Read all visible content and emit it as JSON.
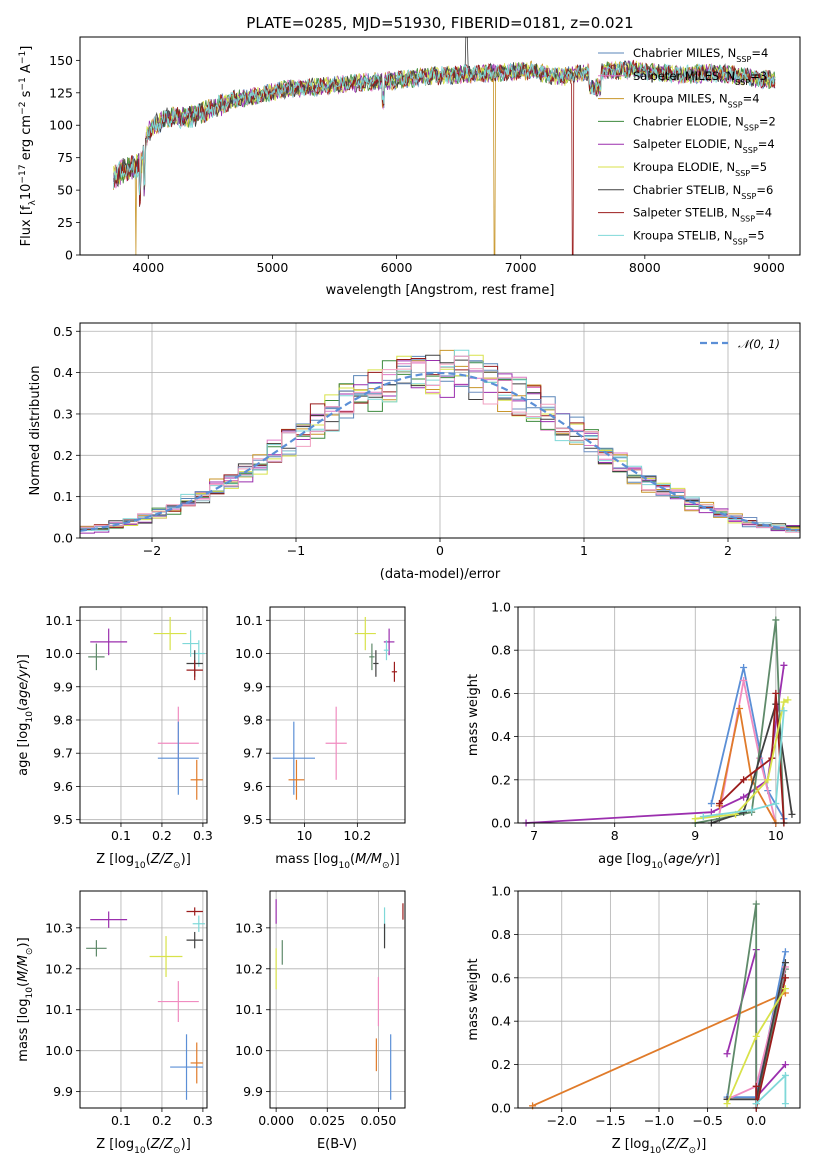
{
  "chart_data": [
    {
      "id": "spectrum",
      "type": "line",
      "title": "PLATE=0285, MJD=51930, FIBERID=0181, z=0.021",
      "xlabel": "wavelength [Angstrom, rest frame]",
      "ylabel": "Flux [fλ10⁻¹⁷ erg cm⁻² s⁻¹ A⁻¹]",
      "xlim": [
        3450,
        9250
      ],
      "ylim": [
        0,
        168
      ],
      "xticks": [
        4000,
        5000,
        6000,
        7000,
        8000,
        9000
      ],
      "yticks": [
        0,
        25,
        50,
        75,
        100,
        125,
        150
      ],
      "continuum": {
        "x": [
          3720,
          3800,
          3900,
          3950,
          4000,
          4100,
          4200,
          4300,
          4500,
          4700,
          4900,
          5100,
          5300,
          5500,
          5700,
          5900,
          6100,
          6300,
          6500,
          6700,
          6900,
          7100,
          7300,
          7500,
          7700,
          7900,
          8100,
          8300,
          8500,
          8700,
          8900,
          9050
        ],
        "y": [
          60,
          65,
          68,
          72,
          95,
          103,
          107,
          105,
          112,
          120,
          123,
          128,
          129,
          131,
          133,
          134,
          136,
          138,
          139,
          140,
          141,
          142,
          137,
          140,
          142,
          143,
          141,
          139,
          140,
          139,
          136,
          135
        ]
      },
      "features": [
        {
          "label": "Na D",
          "x": 5893,
          "depth": 12
        },
        {
          "label": "H-alpha",
          "x": 6563,
          "peak": 168
        },
        {
          "label": "sky",
          "x": 3900,
          "drop_to": 0
        },
        {
          "label": "sky",
          "x": 6790,
          "drop_to": 0
        },
        {
          "label": "sky",
          "x": 7420,
          "drop_to": 0
        }
      ],
      "series": [
        {
          "name": "Chabrier MILES, N",
          "sub": "SSP",
          "nssp": "=4",
          "color": "#5a86b8"
        },
        {
          "name": "Salpeter MILES, N",
          "sub": "SSP",
          "nssp": "=3",
          "color": "#e07ac6"
        },
        {
          "name": "Kroupa MILES, N",
          "sub": "SSP",
          "nssp": "=4",
          "color": "#c8962a"
        },
        {
          "name": "Chabrier ELODIE, N",
          "sub": "SSP",
          "nssp": "=2",
          "color": "#3d8a3d"
        },
        {
          "name": "Salpeter ELODIE, N",
          "sub": "SSP",
          "nssp": "=4",
          "color": "#9b2fae"
        },
        {
          "name": "Kroupa ELODIE, N",
          "sub": "SSP",
          "nssp": "=5",
          "color": "#d8e24a"
        },
        {
          "name": "Chabrier STELIB, N",
          "sub": "SSP",
          "nssp": "=6",
          "color": "#404040"
        },
        {
          "name": "Salpeter STELIB, N",
          "sub": "SSP",
          "nssp": "=4",
          "color": "#9b1c1c"
        },
        {
          "name": "Kroupa STELIB, N",
          "sub": "SSP",
          "nssp": "=5",
          "color": "#7fd8d8"
        }
      ],
      "legend": "top-right",
      "grid": false
    },
    {
      "id": "residuals",
      "type": "line",
      "xlabel": "(data-model)/error",
      "ylabel": "Normed distribution",
      "xlim": [
        -2.5,
        2.5
      ],
      "ylim": [
        0,
        0.52
      ],
      "xticks": [
        -2,
        -1,
        0,
        1,
        2
      ],
      "yticks": [
        0.0,
        0.1,
        0.2,
        0.3,
        0.4,
        0.5
      ],
      "grid": true,
      "bin_width": 0.1,
      "series_colors": [
        "#5a86b8",
        "#e07ac6",
        "#c8962a",
        "#3d8a3d",
        "#9b2fae",
        "#d8e24a",
        "#404040",
        "#9b1c1c",
        "#7fd8d8",
        "#6f8fc0",
        "#f0a0c0"
      ],
      "gaussian": {
        "label": "𝒩(0, 1)",
        "color": "#5b8fd6"
      },
      "legend": "top-right"
    },
    {
      "id": "age_vs_Z",
      "type": "scatter",
      "xlabel": "Z [log₁₀(Z/Z⊙)]",
      "ylabel": "age  [log₁₀(age/yr)]",
      "xlim": [
        0.0,
        0.31
      ],
      "ylim": [
        9.49,
        10.14
      ],
      "xticks": [
        0.1,
        0.2,
        0.3
      ],
      "yticks": [
        9.5,
        9.6,
        9.7,
        9.8,
        9.9,
        10.0,
        10.1
      ],
      "grid": true,
      "points": [
        {
          "x": 0.07,
          "y": 10.035,
          "xerr": 0.045,
          "yerr": 0.04,
          "color": "#9b2fae"
        },
        {
          "x": 0.22,
          "y": 10.06,
          "xerr": 0.04,
          "yerr": 0.05,
          "color": "#d8e24a"
        },
        {
          "x": 0.27,
          "y": 10.03,
          "xerr": 0.02,
          "yerr": 0.04,
          "color": "#7fd8d8"
        },
        {
          "x": 0.04,
          "y": 9.99,
          "xerr": 0.02,
          "yerr": 0.04,
          "color": "#5f8a6a"
        },
        {
          "x": 0.29,
          "y": 10.0,
          "xerr": 0.015,
          "yerr": 0.04,
          "color": "#7fd8d8"
        },
        {
          "x": 0.28,
          "y": 9.97,
          "xerr": 0.02,
          "yerr": 0.04,
          "color": "#404040"
        },
        {
          "x": 0.28,
          "y": 9.95,
          "xerr": 0.02,
          "yerr": 0.03,
          "color": "#9b1c1c"
        },
        {
          "x": 0.24,
          "y": 9.73,
          "xerr": 0.05,
          "yerr": 0.11,
          "color": "#f08cc0"
        },
        {
          "x": 0.24,
          "y": 9.685,
          "xerr": 0.05,
          "yerr": 0.11,
          "color": "#5b8fd6"
        },
        {
          "x": 0.285,
          "y": 9.62,
          "xerr": 0.015,
          "yerr": 0.06,
          "color": "#e07b2a"
        }
      ]
    },
    {
      "id": "age_vs_mass",
      "type": "scatter",
      "xlabel": "mass [log₁₀(M/M⊙)]",
      "xlim": [
        9.87,
        10.38
      ],
      "ylim": [
        9.49,
        10.14
      ],
      "xticks": [
        10.0,
        10.2
      ],
      "yticks": [
        9.5,
        9.6,
        9.7,
        9.8,
        9.9,
        10.0,
        10.1
      ],
      "grid": true,
      "points": [
        {
          "x": 10.23,
          "y": 10.06,
          "xerr": 0.04,
          "yerr": 0.05,
          "color": "#d8e24a"
        },
        {
          "x": 10.32,
          "y": 10.035,
          "xerr": 0.02,
          "yerr": 0.04,
          "color": "#9b2fae"
        },
        {
          "x": 10.31,
          "y": 10.01,
          "xerr": 0.01,
          "yerr": 0.03,
          "color": "#7fd8d8"
        },
        {
          "x": 10.255,
          "y": 9.99,
          "xerr": 0.01,
          "yerr": 0.04,
          "color": "#5f8a6a"
        },
        {
          "x": 10.27,
          "y": 9.97,
          "xerr": 0.01,
          "yerr": 0.04,
          "color": "#404040"
        },
        {
          "x": 10.34,
          "y": 9.945,
          "xerr": 0.01,
          "yerr": 0.03,
          "color": "#9b1c1c"
        },
        {
          "x": 10.12,
          "y": 9.73,
          "xerr": 0.04,
          "yerr": 0.11,
          "color": "#f08cc0"
        },
        {
          "x": 9.96,
          "y": 9.685,
          "xerr": 0.08,
          "yerr": 0.11,
          "color": "#5b8fd6"
        },
        {
          "x": 9.97,
          "y": 9.62,
          "xerr": 0.03,
          "yerr": 0.06,
          "color": "#e07b2a"
        }
      ]
    },
    {
      "id": "weight_vs_age",
      "type": "line",
      "xlabel": "age  [log₁₀(age/yr)]",
      "ylabel": "mass weight",
      "xlim": [
        6.8,
        10.3
      ],
      "ylim": [
        0.0,
        1.0
      ],
      "xticks": [
        7,
        8,
        9,
        10
      ],
      "yticks": [
        0.0,
        0.2,
        0.4,
        0.6,
        0.8,
        1.0
      ],
      "grid": true,
      "series": [
        {
          "color": "#9b2fae",
          "x": [
            6.9,
            9.2,
            9.6,
            9.9,
            10.1
          ],
          "y": [
            0.0,
            0.05,
            0.12,
            0.2,
            0.73
          ]
        },
        {
          "color": "#5b8fd6",
          "x": [
            9.2,
            9.6,
            9.9,
            10.1
          ],
          "y": [
            0.09,
            0.72,
            0.15,
            0.02
          ]
        },
        {
          "color": "#f08cc0",
          "x": [
            9.3,
            9.6,
            9.8,
            10.0
          ],
          "y": [
            0.04,
            0.66,
            0.3,
            0.0
          ]
        },
        {
          "color": "#e07b2a",
          "x": [
            9.3,
            9.55,
            9.7,
            10.0
          ],
          "y": [
            0.08,
            0.53,
            0.2,
            0.0
          ]
        },
        {
          "color": "#5f8a6a",
          "x": [
            9.0,
            9.3,
            9.7,
            10.0,
            10.1
          ],
          "y": [
            0.0,
            0.02,
            0.05,
            0.94,
            0.0
          ]
        },
        {
          "color": "#404040",
          "x": [
            9.2,
            9.6,
            10.0,
            10.2
          ],
          "y": [
            0.0,
            0.05,
            0.55,
            0.04
          ]
        },
        {
          "color": "#9b1c1c",
          "x": [
            9.3,
            9.6,
            9.95,
            10.0,
            10.1
          ],
          "y": [
            0.09,
            0.2,
            0.3,
            0.6,
            0.0
          ]
        },
        {
          "color": "#d8e24a",
          "x": [
            9.0,
            9.5,
            9.9,
            10.1,
            10.15
          ],
          "y": [
            0.02,
            0.04,
            0.2,
            0.56,
            0.57
          ]
        },
        {
          "color": "#7fd8d8",
          "x": [
            9.1,
            9.7,
            10.0,
            10.1
          ],
          "y": [
            0.03,
            0.06,
            0.09,
            0.52
          ]
        }
      ]
    },
    {
      "id": "mass_vs_Z",
      "type": "scatter",
      "xlabel": "Z [log₁₀(Z/Z⊙)]",
      "ylabel": "mass [log₁₀(M/M⊙)]",
      "xlim": [
        0.0,
        0.31
      ],
      "ylim": [
        9.86,
        10.39
      ],
      "xticks": [
        0.1,
        0.2,
        0.3
      ],
      "yticks": [
        9.9,
        10.0,
        10.1,
        10.2,
        10.3
      ],
      "grid": true,
      "points": [
        {
          "x": 0.07,
          "y": 10.32,
          "xerr": 0.045,
          "yerr": 0.02,
          "color": "#9b2fae"
        },
        {
          "x": 0.28,
          "y": 10.34,
          "xerr": 0.02,
          "yerr": 0.01,
          "color": "#9b1c1c"
        },
        {
          "x": 0.29,
          "y": 10.31,
          "xerr": 0.015,
          "yerr": 0.02,
          "color": "#7fd8d8"
        },
        {
          "x": 0.04,
          "y": 10.25,
          "xerr": 0.025,
          "yerr": 0.02,
          "color": "#5f8a6a"
        },
        {
          "x": 0.28,
          "y": 10.27,
          "xerr": 0.02,
          "yerr": 0.02,
          "color": "#404040"
        },
        {
          "x": 0.21,
          "y": 10.23,
          "xerr": 0.04,
          "yerr": 0.05,
          "color": "#d8e24a"
        },
        {
          "x": 0.24,
          "y": 10.12,
          "xerr": 0.05,
          "yerr": 0.05,
          "color": "#f08cc0"
        },
        {
          "x": 0.285,
          "y": 9.97,
          "xerr": 0.015,
          "yerr": 0.05,
          "color": "#e07b2a"
        },
        {
          "x": 0.26,
          "y": 9.96,
          "xerr": 0.04,
          "yerr": 0.08,
          "color": "#5b8fd6"
        }
      ]
    },
    {
      "id": "mass_vs_ebv",
      "type": "scatter",
      "xlabel": "E(B-V)",
      "xlim": [
        -0.003,
        0.063
      ],
      "ylim": [
        9.86,
        10.39
      ],
      "xticks": [
        0.0,
        0.025,
        0.05
      ],
      "xticklabels": [
        "0.000",
        "0.025",
        "0.050"
      ],
      "yticks": [
        9.9,
        10.0,
        10.1,
        10.2,
        10.3
      ],
      "grid": true,
      "points": [
        {
          "x": 0.0,
          "y": 10.34,
          "xerr": 0.0,
          "yerr": 0.03,
          "color": "#9b2fae"
        },
        {
          "x": 0.062,
          "y": 10.34,
          "xerr": 0.0,
          "yerr": 0.02,
          "color": "#9b1c1c"
        },
        {
          "x": 0.053,
          "y": 10.31,
          "xerr": 0.0,
          "yerr": 0.04,
          "color": "#7fd8d8"
        },
        {
          "x": 0.053,
          "y": 10.28,
          "xerr": 0.0,
          "yerr": 0.03,
          "color": "#404040"
        },
        {
          "x": 0.003,
          "y": 10.24,
          "xerr": 0.0,
          "yerr": 0.03,
          "color": "#5f8a6a"
        },
        {
          "x": 0.0,
          "y": 10.2,
          "xerr": 0.0,
          "yerr": 0.05,
          "color": "#d8e24a"
        },
        {
          "x": 0.05,
          "y": 10.12,
          "xerr": 0.0,
          "yerr": 0.06,
          "color": "#f08cc0"
        },
        {
          "x": 0.049,
          "y": 9.99,
          "xerr": 0.0,
          "yerr": 0.04,
          "color": "#e07b2a"
        },
        {
          "x": 0.056,
          "y": 9.96,
          "xerr": 0.0,
          "yerr": 0.08,
          "color": "#5b8fd6"
        }
      ]
    },
    {
      "id": "weight_vs_Z",
      "type": "line",
      "xlabel": "Z [log₁₀(Z/Z⊙)]",
      "ylabel": "mass weight",
      "xlim": [
        -2.45,
        0.45
      ],
      "ylim": [
        0.0,
        1.0
      ],
      "xticks": [
        -2.0,
        -1.5,
        -1.0,
        -0.5,
        0.0
      ],
      "xticklabels": [
        "−2.0",
        "−1.5",
        "−1.0",
        "−0.5",
        "0.0"
      ],
      "yticks": [
        0.0,
        0.2,
        0.4,
        0.6,
        0.8,
        1.0
      ],
      "grid": true,
      "series": [
        {
          "color": "#e07b2a",
          "x": [
            -2.3,
            0.3
          ],
          "y": [
            0.01,
            0.53
          ]
        },
        {
          "color": "#9b2fae",
          "x": [
            -0.3,
            0.0,
            0.0,
            0.3
          ],
          "y": [
            0.25,
            0.73,
            0.05,
            0.2
          ]
        },
        {
          "color": "#5f8a6a",
          "x": [
            -0.3,
            0.0,
            0.0,
            0.3
          ],
          "y": [
            0.04,
            0.94,
            0.02,
            0.64
          ]
        },
        {
          "color": "#5b8fd6",
          "x": [
            -0.3,
            0.0,
            0.3
          ],
          "y": [
            0.05,
            0.05,
            0.72
          ]
        },
        {
          "color": "#f08cc0",
          "x": [
            -0.3,
            0.0,
            0.3
          ],
          "y": [
            0.04,
            0.1,
            0.65
          ]
        },
        {
          "color": "#404040",
          "x": [
            -0.3,
            0.0,
            0.3
          ],
          "y": [
            0.04,
            0.04,
            0.67
          ]
        },
        {
          "color": "#9b1c1c",
          "x": [
            0.0,
            0.0,
            0.3
          ],
          "y": [
            0.1,
            0.0,
            0.6
          ]
        },
        {
          "color": "#d8e24a",
          "x": [
            -0.3,
            0.0,
            0.3
          ],
          "y": [
            0.02,
            0.33,
            0.55
          ]
        },
        {
          "color": "#7fd8d8",
          "x": [
            0.0,
            0.3,
            0.3
          ],
          "y": [
            0.02,
            0.15,
            0.02
          ]
        }
      ]
    }
  ]
}
